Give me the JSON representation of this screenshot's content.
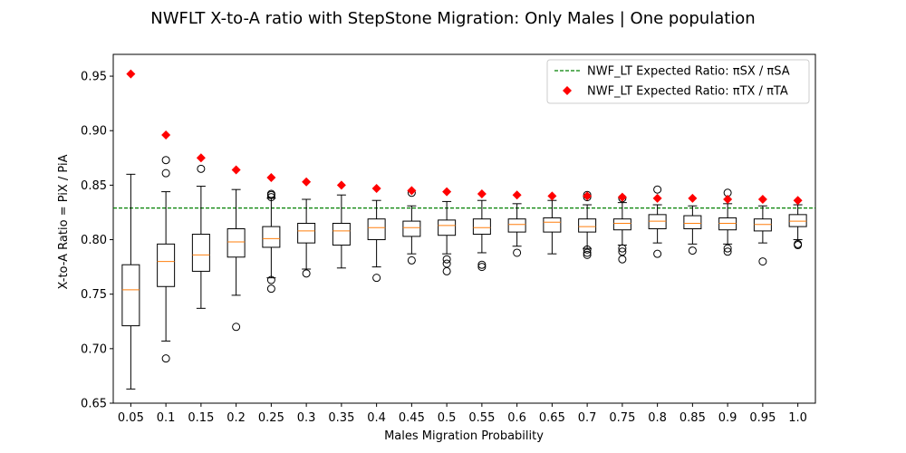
{
  "chart_data": {
    "type": "box",
    "title": "NWFLT X-to-A ratio with StepStone Migration: Only Males | One population",
    "xlabel": "Males Migration Probability",
    "ylabel": "X-to-A Ratio = PiX / PiA",
    "ylim": [
      0.65,
      0.97
    ],
    "yticks": [
      0.65,
      0.7,
      0.75,
      0.8,
      0.85,
      0.9,
      0.95
    ],
    "ytick_labels": [
      "0.65",
      "0.70",
      "0.75",
      "0.80",
      "0.85",
      "0.90",
      "0.95"
    ],
    "categories": [
      "0.05",
      "0.1",
      "0.15",
      "0.2",
      "0.25",
      "0.3",
      "0.35",
      "0.4",
      "0.45",
      "0.5",
      "0.55",
      "0.6",
      "0.65",
      "0.7",
      "0.75",
      "0.8",
      "0.85",
      "0.9",
      "0.95",
      "1.0"
    ],
    "grid": false,
    "legend_position": "top-right",
    "box_color": "#000000",
    "median_color": "#ff7f0e",
    "boxes": [
      {
        "x": "0.05",
        "whislo": 0.663,
        "q1": 0.721,
        "med": 0.754,
        "q3": 0.777,
        "whishi": 0.86,
        "fliers": []
      },
      {
        "x": "0.1",
        "whislo": 0.707,
        "q1": 0.757,
        "med": 0.78,
        "q3": 0.796,
        "whishi": 0.844,
        "fliers": [
          0.873,
          0.861,
          0.691
        ]
      },
      {
        "x": "0.15",
        "whislo": 0.737,
        "q1": 0.771,
        "med": 0.786,
        "q3": 0.805,
        "whishi": 0.849,
        "fliers": [
          0.865
        ]
      },
      {
        "x": "0.2",
        "whislo": 0.749,
        "q1": 0.784,
        "med": 0.798,
        "q3": 0.81,
        "whishi": 0.846,
        "fliers": [
          0.72
        ]
      },
      {
        "x": "0.25",
        "whislo": 0.765,
        "q1": 0.793,
        "med": 0.801,
        "q3": 0.812,
        "whishi": 0.838,
        "fliers": [
          0.842,
          0.841,
          0.839,
          0.763,
          0.755
        ]
      },
      {
        "x": "0.3",
        "whislo": 0.773,
        "q1": 0.797,
        "med": 0.808,
        "q3": 0.815,
        "whishi": 0.837,
        "fliers": [
          0.769
        ]
      },
      {
        "x": "0.35",
        "whislo": 0.774,
        "q1": 0.795,
        "med": 0.808,
        "q3": 0.815,
        "whishi": 0.841,
        "fliers": []
      },
      {
        "x": "0.4",
        "whislo": 0.775,
        "q1": 0.8,
        "med": 0.811,
        "q3": 0.819,
        "whishi": 0.836,
        "fliers": [
          0.765
        ]
      },
      {
        "x": "0.45",
        "whislo": 0.787,
        "q1": 0.803,
        "med": 0.811,
        "q3": 0.817,
        "whishi": 0.831,
        "fliers": [
          0.843,
          0.781
        ]
      },
      {
        "x": "0.5",
        "whislo": 0.787,
        "q1": 0.804,
        "med": 0.813,
        "q3": 0.818,
        "whishi": 0.835,
        "fliers": [
          0.782,
          0.778,
          0.771
        ]
      },
      {
        "x": "0.55",
        "whislo": 0.788,
        "q1": 0.805,
        "med": 0.811,
        "q3": 0.819,
        "whishi": 0.836,
        "fliers": [
          0.777,
          0.775
        ]
      },
      {
        "x": "0.6",
        "whislo": 0.794,
        "q1": 0.807,
        "med": 0.814,
        "q3": 0.819,
        "whishi": 0.833,
        "fliers": [
          0.788
        ]
      },
      {
        "x": "0.65",
        "whislo": 0.787,
        "q1": 0.807,
        "med": 0.816,
        "q3": 0.82,
        "whishi": 0.836,
        "fliers": []
      },
      {
        "x": "0.7",
        "whislo": 0.792,
        "q1": 0.807,
        "med": 0.812,
        "q3": 0.819,
        "whishi": 0.832,
        "fliers": [
          0.841,
          0.839,
          0.791,
          0.788,
          0.786
        ]
      },
      {
        "x": "0.75",
        "whislo": 0.795,
        "q1": 0.809,
        "med": 0.815,
        "q3": 0.819,
        "whishi": 0.834,
        "fliers": [
          0.838,
          0.792,
          0.789,
          0.782
        ]
      },
      {
        "x": "0.8",
        "whislo": 0.797,
        "q1": 0.81,
        "med": 0.817,
        "q3": 0.823,
        "whishi": 0.832,
        "fliers": [
          0.846,
          0.787
        ]
      },
      {
        "x": "0.85",
        "whislo": 0.796,
        "q1": 0.81,
        "med": 0.815,
        "q3": 0.822,
        "whishi": 0.831,
        "fliers": [
          0.79
        ]
      },
      {
        "x": "0.9",
        "whislo": 0.796,
        "q1": 0.809,
        "med": 0.815,
        "q3": 0.82,
        "whishi": 0.833,
        "fliers": [
          0.843,
          0.792,
          0.789
        ]
      },
      {
        "x": "0.95",
        "whislo": 0.797,
        "q1": 0.808,
        "med": 0.814,
        "q3": 0.819,
        "whishi": 0.831,
        "fliers": [
          0.78
        ]
      },
      {
        "x": "1.0",
        "whislo": 0.8,
        "q1": 0.812,
        "med": 0.817,
        "q3": 0.823,
        "whishi": 0.832,
        "fliers": [
          0.796,
          0.795
        ]
      }
    ],
    "series": [
      {
        "name": "NWF_LT Expected Ratio: πSX / πSA",
        "type": "hline",
        "style": "dashed",
        "color": "#008000",
        "value": 0.829
      },
      {
        "name": "NWF_LT Expected Ratio: πTX / πTA",
        "type": "scatter",
        "marker": "diamond",
        "color": "#ff0000",
        "values": [
          0.952,
          0.896,
          0.875,
          0.864,
          0.857,
          0.853,
          0.85,
          0.847,
          0.845,
          0.844,
          0.842,
          0.841,
          0.84,
          0.84,
          0.839,
          0.838,
          0.838,
          0.837,
          0.837,
          0.836
        ]
      }
    ]
  }
}
